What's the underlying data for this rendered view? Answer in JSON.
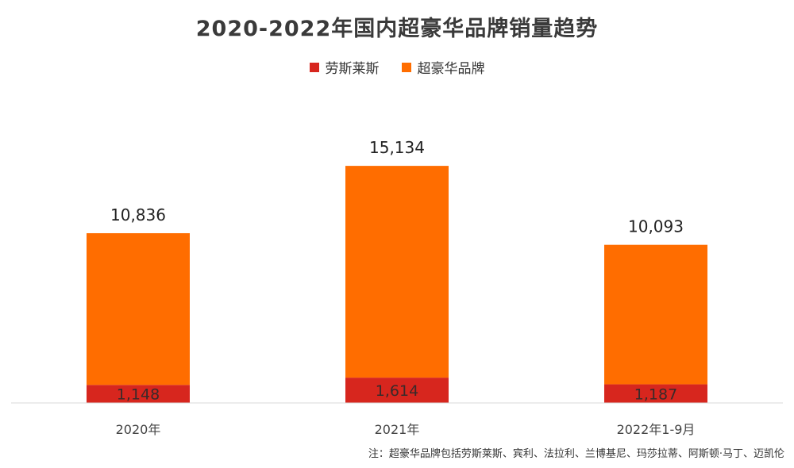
{
  "title": "2020-2022年国内超豪华品牌销量趋势",
  "note": "注：超豪华品牌包括劳斯莱斯、宾利、法拉利、兰博基尼、玛莎拉蒂、阿斯顿·马丁、迈凯伦",
  "colors": {
    "rolls": "#d7261e",
    "ultra": "#ff6d00"
  },
  "chart_data": {
    "type": "bar",
    "stacked": true,
    "title": "2020-2022年国内超豪华品牌销量趋势",
    "categories": [
      "2020年",
      "2021年",
      "2022年1-9月"
    ],
    "series": [
      {
        "name": "劳斯莱斯",
        "values": [
          1148,
          1614,
          1187
        ],
        "labels": [
          "1,148",
          "1,614",
          "1,187"
        ],
        "color": "#d7261e"
      },
      {
        "name": "超豪华品牌",
        "values": [
          10836,
          15134,
          10093
        ],
        "labels": [
          "10,836",
          "15,134",
          "10,093"
        ],
        "color": "#ff6d00"
      }
    ],
    "ylim": [
      0,
      18000
    ],
    "legend": "top-center",
    "grid": false
  }
}
